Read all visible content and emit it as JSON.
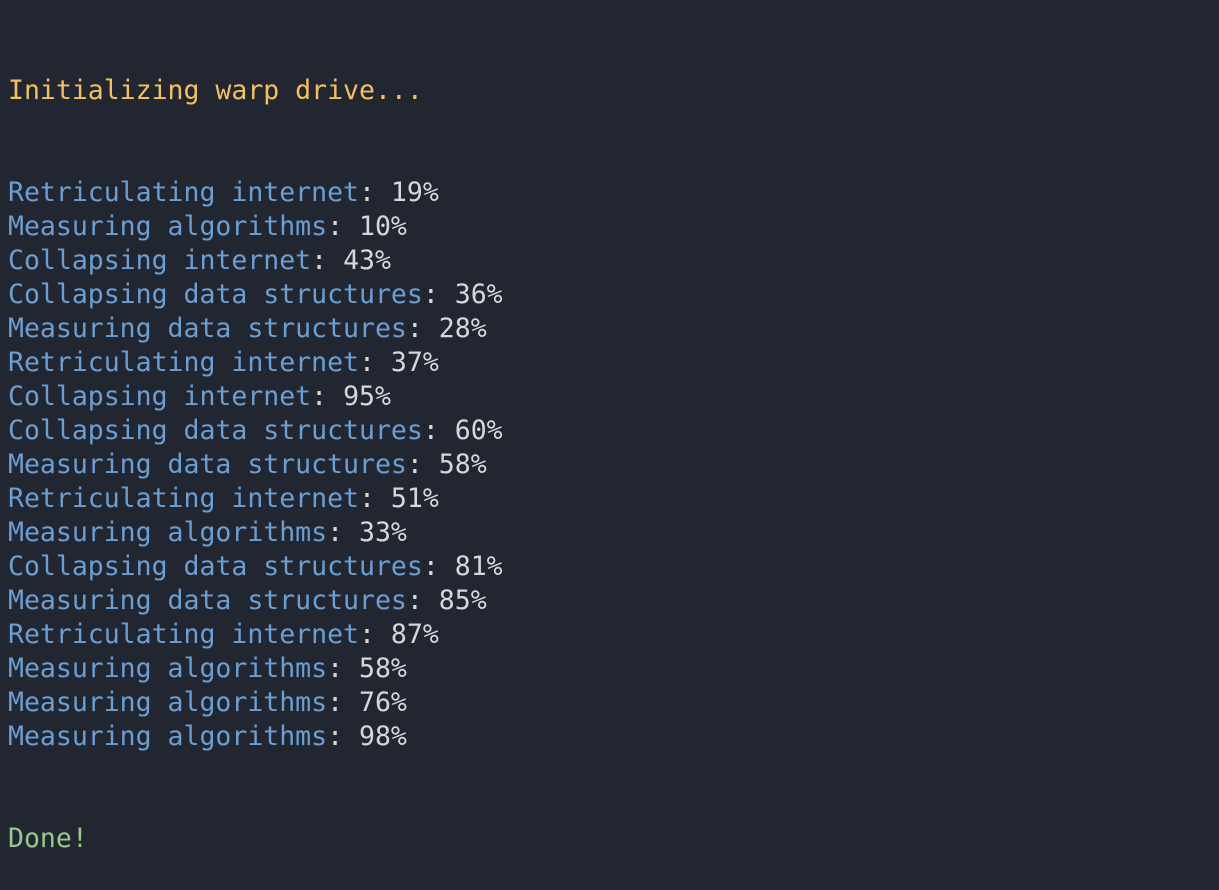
{
  "terminal": {
    "header": "Initializing warp drive...",
    "lines": [
      {
        "task": "Retriculating internet",
        "value": "19%"
      },
      {
        "task": "Measuring algorithms",
        "value": "10%"
      },
      {
        "task": "Collapsing internet",
        "value": "43%"
      },
      {
        "task": "Collapsing data structures",
        "value": "36%"
      },
      {
        "task": "Measuring data structures",
        "value": "28%"
      },
      {
        "task": "Retriculating internet",
        "value": "37%"
      },
      {
        "task": "Collapsing internet",
        "value": "95%"
      },
      {
        "task": "Collapsing data structures",
        "value": "60%"
      },
      {
        "task": "Measuring data structures",
        "value": "58%"
      },
      {
        "task": "Retriculating internet",
        "value": "51%"
      },
      {
        "task": "Measuring algorithms",
        "value": "33%"
      },
      {
        "task": "Collapsing data structures",
        "value": "81%"
      },
      {
        "task": "Measuring data structures",
        "value": "85%"
      },
      {
        "task": "Retriculating internet",
        "value": "87%"
      },
      {
        "task": "Measuring algorithms",
        "value": "58%"
      },
      {
        "task": "Measuring algorithms",
        "value": "76%"
      },
      {
        "task": "Measuring algorithms",
        "value": "98%"
      }
    ],
    "separator": ": ",
    "footer": "Done!",
    "colors": {
      "background": "#222631",
      "header": "#f2c063",
      "task": "#6b9fd3",
      "value": "#d6d7da",
      "done": "#97c98c"
    }
  }
}
